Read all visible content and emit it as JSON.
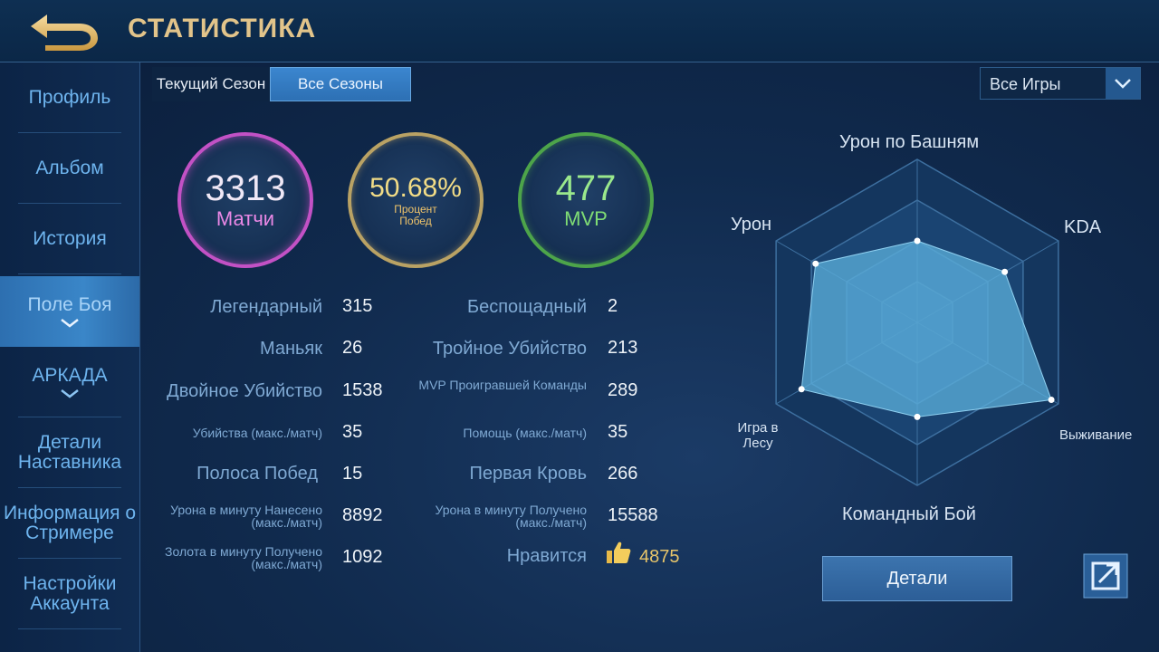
{
  "header": {
    "title": "СТАТИСТИКА",
    "back_icon": "back-arrow-icon"
  },
  "sidebar": {
    "items": [
      {
        "label": "Профиль"
      },
      {
        "label": "Альбом"
      },
      {
        "label": "История"
      },
      {
        "label": "Поле Боя"
      },
      {
        "label": "АРКАДА"
      },
      {
        "label": "Детали Наставника"
      },
      {
        "label": "Информация о Стримере"
      },
      {
        "label": "Настройки Аккаунта"
      }
    ]
  },
  "tabs": {
    "current": "Текущий Сезон",
    "all": "Все Сезоны"
  },
  "filter": {
    "selected": "Все Игры"
  },
  "summary": {
    "matches_value": "3313",
    "matches_label": "Матчи",
    "winrate_value": "50.68%",
    "winrate_label": "Процент Побед",
    "mvp_value": "477",
    "mvp_label": "MVP"
  },
  "stats": {
    "left": [
      {
        "label": "Легендарный",
        "value": "315"
      },
      {
        "label": "Маньяк",
        "value": "26"
      },
      {
        "label": "Двойное Убийство",
        "value": "1538"
      },
      {
        "label": "Убийства (макс./матч)",
        "value": "35"
      },
      {
        "label": "Полоса Побед",
        "value": "15"
      },
      {
        "label": "Урона в минуту Нанесено (макс./матч)",
        "value": "8892"
      },
      {
        "label": "Золота в минуту Получено (макс./матч)",
        "value": "1092"
      }
    ],
    "right": [
      {
        "label": "Беспощадный",
        "value": "2"
      },
      {
        "label": "Тройное Убийство",
        "value": "213"
      },
      {
        "label": "MVP Проигравшей Команды",
        "value": "289"
      },
      {
        "label": "Помощь (макс./матч)",
        "value": "35"
      },
      {
        "label": "Первая Кровь",
        "value": "266"
      },
      {
        "label": "Урона в минуту Получено (макс./матч)",
        "value": "15588"
      },
      {
        "label": "Нравится",
        "value": "4875"
      }
    ]
  },
  "radar": {
    "axes": [
      "Урон по Башням",
      "KDA",
      "Выживание",
      "Командный Бой",
      "Игра в Лесу",
      "Урон"
    ],
    "values": [
      0.5,
      0.62,
      0.95,
      0.58,
      0.82,
      0.72
    ],
    "fill_color": "#5cb0dc"
  },
  "actions": {
    "details_label": "Детали",
    "share_icon": "share-icon"
  }
}
